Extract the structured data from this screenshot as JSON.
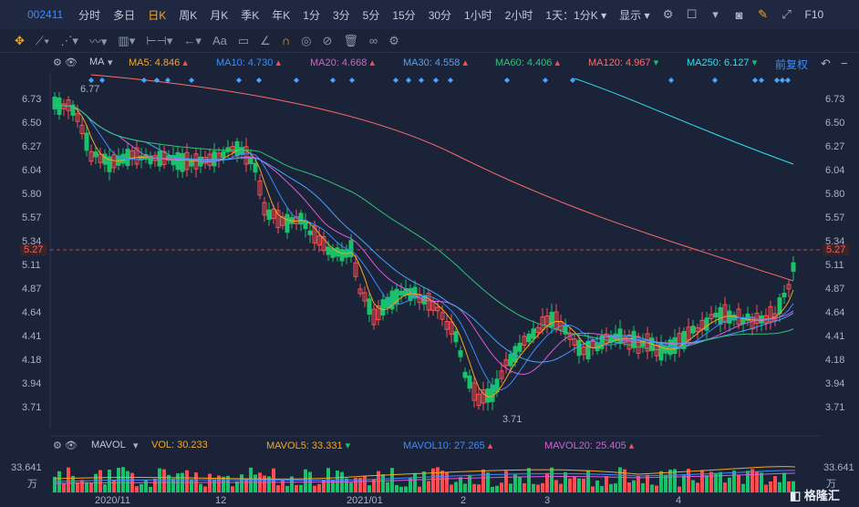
{
  "toolbar": {
    "code": "002411",
    "periods": [
      "分时",
      "多日",
      "日K",
      "周K",
      "月K",
      "季K",
      "年K",
      "1分",
      "3分",
      "5分",
      "15分",
      "30分",
      "1小时",
      "2小时"
    ],
    "active_period": "日K",
    "range_select": "1天：1分K",
    "display": "显示",
    "f10": "F10"
  },
  "drawing_tools": {
    "text_tool": "Aa"
  },
  "ma_legend": {
    "label": "MA",
    "ma5": "MA5: 4.846",
    "ma10": "MA10: 4.730",
    "ma20": "MA20: 4.668",
    "ma30": "MA30: 4.558",
    "ma60": "MA60: 4.406",
    "ma120": "MA120: 4.967",
    "ma250": "MA250: 6.127",
    "adjust": "前复权"
  },
  "colors": {
    "ma5": "#f5a623",
    "ma10": "#3d8bfd",
    "ma20": "#e05ad8",
    "ma30": "#4aa3ff",
    "ma60": "#2fc27a",
    "ma120": "#ff6b6b",
    "ma250": "#2fe0f0",
    "up": "#ff4d4f",
    "down": "#19c16a"
  },
  "price_axis": [
    "6.73",
    "6.50",
    "6.27",
    "6.04",
    "5.80",
    "5.57",
    "5.34",
    "5.27",
    "5.11",
    "4.87",
    "4.64",
    "4.41",
    "4.18",
    "3.94",
    "3.71"
  ],
  "current_price": "5.27",
  "annotations": {
    "high": "6.77",
    "low": "3.71"
  },
  "vol_legend": {
    "label": "MAVOL",
    "vol": "VOL: 30.233",
    "mavol5": "MAVOL5: 33.331",
    "mavol10": "MAVOL10: 27.265",
    "mavol20": "MAVOL20: 25.405"
  },
  "vol_axis": {
    "top": "33.641",
    "unit": "万"
  },
  "x_labels": [
    "2020/11",
    "12",
    "2021/01",
    "2",
    "3",
    "4"
  ],
  "watermark": "格隆汇"
}
